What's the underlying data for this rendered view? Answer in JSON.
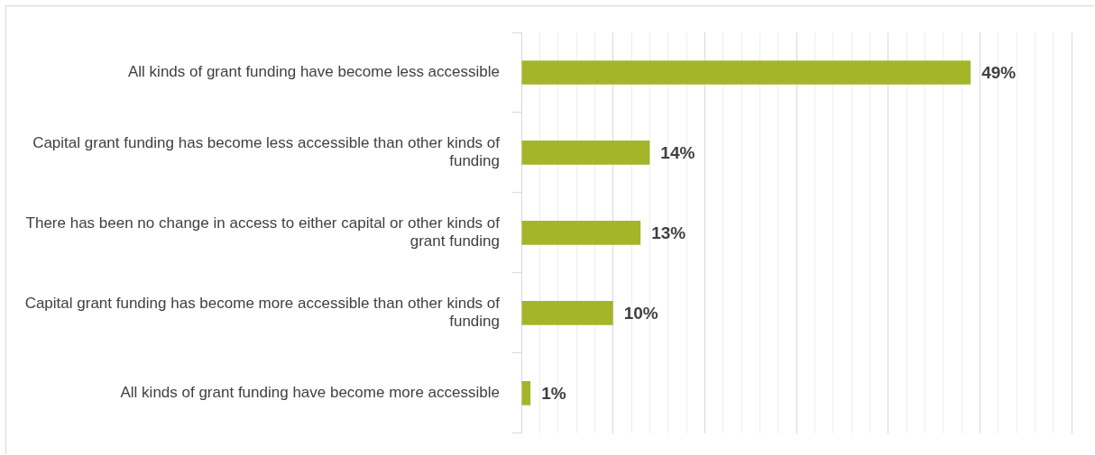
{
  "chart_data": {
    "type": "bar",
    "orientation": "horizontal",
    "categories": [
      "All kinds of grant funding have become less accessible",
      "Capital grant funding has become less accessible than other kinds of funding",
      "There has been no change in access to either capital or other kinds of grant funding",
      "Capital grant funding has become more accessible than other kinds of funding",
      "All kinds of grant funding have become more accessible"
    ],
    "values": [
      49,
      14,
      13,
      10,
      1
    ],
    "value_labels": [
      "49%",
      "14%",
      "13%",
      "10%",
      "1%"
    ],
    "color": "#a5b52a",
    "xlim": [
      0,
      60
    ],
    "xticks": [
      {
        "value": 0,
        "label": null
      },
      {
        "value": 2,
        "label": null
      },
      {
        "value": 4,
        "label": null
      },
      {
        "value": 6,
        "label": null
      },
      {
        "value": 8,
        "label": null
      },
      {
        "value": 10,
        "label": null
      },
      {
        "value": 12,
        "label": null
      },
      {
        "value": 14,
        "label": null
      },
      {
        "value": 16,
        "label": null
      },
      {
        "value": 18,
        "label": null
      },
      {
        "value": 20,
        "label": null
      },
      {
        "value": 22,
        "label": null
      },
      {
        "value": 24,
        "label": null
      },
      {
        "value": 26,
        "label": null
      },
      {
        "value": 28,
        "label": null
      },
      {
        "value": 30,
        "label": null
      },
      {
        "value": 32,
        "label": null
      },
      {
        "value": 34,
        "label": null
      },
      {
        "value": 36,
        "label": null
      },
      {
        "value": 38,
        "label": null
      },
      {
        "value": 40,
        "label": null
      },
      {
        "value": 42,
        "label": null
      },
      {
        "value": 44,
        "label": null
      },
      {
        "value": 46,
        "label": null
      },
      {
        "value": 48,
        "label": null
      },
      {
        "value": 50,
        "label": null
      },
      {
        "value": 52,
        "label": null
      },
      {
        "value": 54,
        "label": null
      },
      {
        "value": 56,
        "label": null
      },
      {
        "value": 58,
        "label": null
      },
      {
        "value": 60,
        "label": null
      }
    ],
    "grid": "x",
    "tick_labels": "y",
    "legend": false
  }
}
